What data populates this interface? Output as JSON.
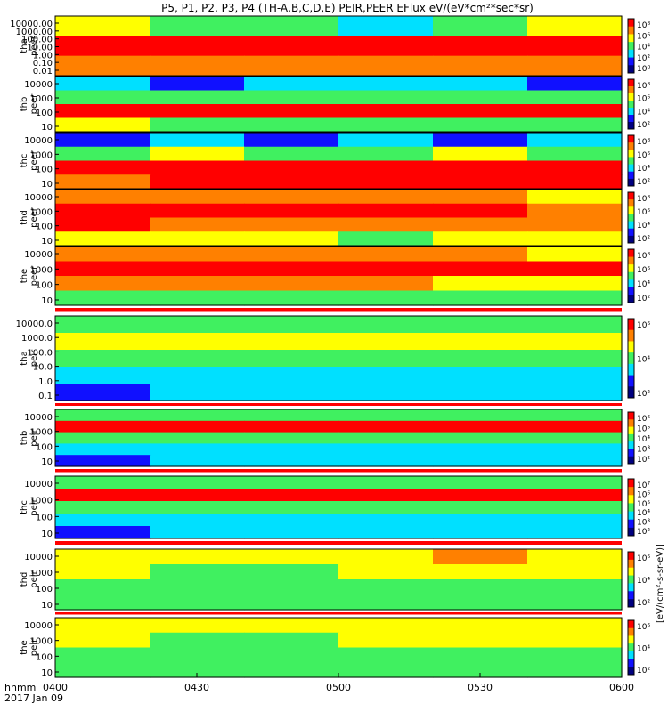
{
  "title": "P5, P1, P2, P3, P4 (TH-A,B,C,D,E) PEIR,PEER EFlux eV/(eV*cm²*sec*sr)",
  "colorbar_unit_label": "[eV/(cm²-s-sr-eV)]",
  "time_axis": {
    "row_label": "hhmm",
    "date_label": "2017 Jan 09",
    "ticks": [
      "0400",
      "0430",
      "0500",
      "0530",
      "0600"
    ]
  },
  "colors": {
    "black": "#000000",
    "blue": "#1010ff",
    "cyan": "#00e0ff",
    "green": "#40f060",
    "yellow": "#ffff00",
    "orange": "#ff8000",
    "red": "#ff0000",
    "mode_bar_red": "#ff0000"
  },
  "chart_data": [
    {
      "type": "heatmap",
      "name": "tha peer",
      "ylabel": [
        "tha",
        "peer"
      ],
      "yscale": "log",
      "yticks": [
        "10000.00",
        "1000.00",
        "100.00",
        "10.00",
        "1.00",
        "0.10",
        "0.01"
      ],
      "cbticks": [
        "10⁸",
        "10⁶",
        "10⁴",
        "10²",
        "10⁰"
      ],
      "bands": [
        [
          "yellow",
          "green",
          "green",
          "cyan",
          "green",
          "yellow"
        ],
        [
          "red",
          "red",
          "red",
          "red",
          "red",
          "red"
        ],
        [
          "orange",
          "orange",
          "orange",
          "orange",
          "orange",
          "orange"
        ]
      ]
    },
    {
      "type": "heatmap",
      "name": "thb peer",
      "ylabel": [
        "thb",
        "peer"
      ],
      "yscale": "log",
      "yticks": [
        "10000",
        "1000",
        "100",
        "10"
      ],
      "cbticks": [
        "10⁸",
        "10⁶",
        "10⁴",
        "10²"
      ],
      "bands": [
        [
          "cyan",
          "blue",
          "cyan",
          "cyan",
          "cyan",
          "blue"
        ],
        [
          "green",
          "green",
          "green",
          "green",
          "green",
          "green"
        ],
        [
          "red",
          "red",
          "red",
          "red",
          "red",
          "red"
        ],
        [
          "yellow",
          "green",
          "green",
          "green",
          "green",
          "green"
        ]
      ]
    },
    {
      "type": "heatmap",
      "name": "thc peer",
      "ylabel": [
        "thc",
        "peer"
      ],
      "yscale": "log",
      "yticks": [
        "10000",
        "1000",
        "100",
        "10"
      ],
      "cbticks": [
        "10⁸",
        "10⁶",
        "10⁴",
        "10²"
      ],
      "bands": [
        [
          "blue",
          "cyan",
          "blue",
          "cyan",
          "blue",
          "cyan"
        ],
        [
          "green",
          "yellow",
          "green",
          "green",
          "yellow",
          "green"
        ],
        [
          "red",
          "red",
          "red",
          "red",
          "red",
          "red"
        ],
        [
          "orange",
          "red",
          "red",
          "red",
          "red",
          "red"
        ]
      ]
    },
    {
      "type": "heatmap",
      "name": "thd peer",
      "ylabel": [
        "thd",
        "peer"
      ],
      "yscale": "log",
      "yticks": [
        "10000",
        "1000",
        "100",
        "10"
      ],
      "cbticks": [
        "10⁸",
        "10⁶",
        "10⁴",
        "10²"
      ],
      "bands": [
        [
          "orange",
          "orange",
          "orange",
          "orange",
          "orange",
          "yellow"
        ],
        [
          "red",
          "red",
          "red",
          "red",
          "red",
          "orange"
        ],
        [
          "red",
          "orange",
          "orange",
          "orange",
          "orange",
          "orange"
        ],
        [
          "yellow",
          "yellow",
          "yellow",
          "green",
          "yellow",
          "yellow"
        ]
      ]
    },
    {
      "type": "heatmap",
      "name": "the peer",
      "ylabel": [
        "the",
        "peer"
      ],
      "yscale": "log",
      "yticks": [
        "10000",
        "1000",
        "100",
        "10"
      ],
      "cbticks": [
        "10⁸",
        "10⁶",
        "10⁴",
        "10²"
      ],
      "bands": [
        [
          "orange",
          "orange",
          "orange",
          "orange",
          "orange",
          "yellow"
        ],
        [
          "red",
          "red",
          "red",
          "red",
          "red",
          "red"
        ],
        [
          "orange",
          "orange",
          "orange",
          "orange",
          "yellow",
          "yellow"
        ],
        [
          "green",
          "green",
          "green",
          "green",
          "green",
          "green"
        ]
      ]
    },
    {
      "type": "heatmap",
      "name": "tha peir",
      "ylabel": [
        "tha",
        "peir"
      ],
      "yscale": "log",
      "yticks": [
        "10000.0",
        "1000.0",
        "100.0",
        "10.0",
        "1.0",
        "0.1"
      ],
      "cbticks": [
        "10⁶",
        "10⁴",
        "10²"
      ],
      "bands": [
        [
          "green",
          "green",
          "green",
          "green",
          "green",
          "green"
        ],
        [
          "yellow",
          "yellow",
          "yellow",
          "yellow",
          "yellow",
          "yellow"
        ],
        [
          "green",
          "green",
          "green",
          "green",
          "green",
          "green"
        ],
        [
          "cyan",
          "cyan",
          "cyan",
          "cyan",
          "cyan",
          "cyan"
        ],
        [
          "blue",
          "cyan",
          "cyan",
          "cyan",
          "cyan",
          "cyan"
        ]
      ]
    },
    {
      "type": "heatmap",
      "name": "thb peir",
      "ylabel": [
        "thb",
        "peir"
      ],
      "yscale": "log",
      "yticks": [
        "10000",
        "1000",
        "100",
        "10"
      ],
      "cbticks": [
        "10⁶",
        "10⁵",
        "10⁴",
        "10³",
        "10²"
      ],
      "bands": [
        [
          "green",
          "green",
          "green",
          "green",
          "green",
          "green"
        ],
        [
          "red",
          "red",
          "red",
          "red",
          "red",
          "red"
        ],
        [
          "green",
          "green",
          "green",
          "green",
          "green",
          "green"
        ],
        [
          "cyan",
          "cyan",
          "cyan",
          "cyan",
          "cyan",
          "cyan"
        ],
        [
          "blue",
          "cyan",
          "cyan",
          "cyan",
          "cyan",
          "cyan"
        ]
      ]
    },
    {
      "type": "heatmap",
      "name": "thc peir",
      "ylabel": [
        "thc",
        "peir"
      ],
      "yscale": "log",
      "yticks": [
        "10000",
        "1000",
        "100",
        "10"
      ],
      "cbticks": [
        "10⁷",
        "10⁶",
        "10⁵",
        "10⁴",
        "10³",
        "10²"
      ],
      "bands": [
        [
          "green",
          "green",
          "green",
          "green",
          "green",
          "green"
        ],
        [
          "red",
          "red",
          "red",
          "red",
          "red",
          "red"
        ],
        [
          "green",
          "green",
          "green",
          "green",
          "green",
          "green"
        ],
        [
          "cyan",
          "cyan",
          "cyan",
          "cyan",
          "cyan",
          "cyan"
        ],
        [
          "blue",
          "cyan",
          "cyan",
          "cyan",
          "cyan",
          "cyan"
        ]
      ]
    },
    {
      "type": "heatmap",
      "name": "thd peir",
      "ylabel": [
        "thd",
        "peir"
      ],
      "yscale": "log",
      "yticks": [
        "10000",
        "1000",
        "100",
        "10"
      ],
      "cbticks": [
        "10⁶",
        "10⁴",
        "10²"
      ],
      "bands": [
        [
          "yellow",
          "yellow",
          "yellow",
          "yellow",
          "orange",
          "yellow"
        ],
        [
          "yellow",
          "green",
          "green",
          "yellow",
          "yellow",
          "yellow"
        ],
        [
          "green",
          "green",
          "green",
          "green",
          "green",
          "green"
        ],
        [
          "green",
          "green",
          "green",
          "green",
          "green",
          "green"
        ]
      ]
    },
    {
      "type": "heatmap",
      "name": "the peir",
      "ylabel": [
        "the",
        "peir"
      ],
      "yscale": "log",
      "yticks": [
        "10000",
        "1000",
        "100",
        "10"
      ],
      "cbticks": [
        "10⁶",
        "10⁴",
        "10²"
      ],
      "bands": [
        [
          "yellow",
          "yellow",
          "yellow",
          "yellow",
          "yellow",
          "yellow"
        ],
        [
          "yellow",
          "green",
          "green",
          "yellow",
          "yellow",
          "yellow"
        ],
        [
          "green",
          "green",
          "green",
          "green",
          "green",
          "green"
        ],
        [
          "green",
          "green",
          "green",
          "green",
          "green",
          "green"
        ]
      ]
    }
  ]
}
